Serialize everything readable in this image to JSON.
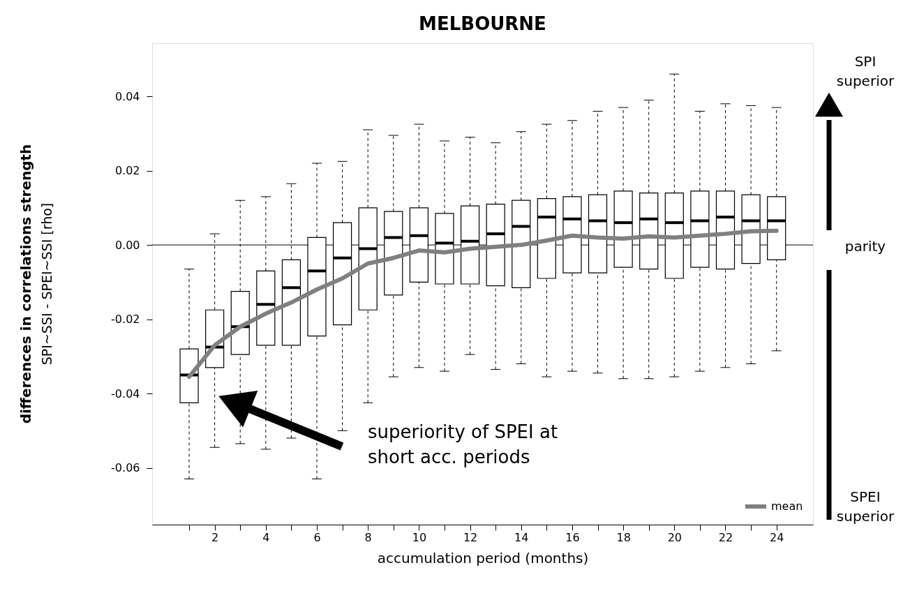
{
  "chart_data": {
    "type": "box",
    "title": "MELBOURNE",
    "xlabel": "accumulation period (months)",
    "ylabel": "differences in correlations strength\nSPI~SSI - SPEI~SSI [rho]",
    "x": [
      1,
      2,
      3,
      4,
      5,
      6,
      7,
      8,
      9,
      10,
      11,
      12,
      13,
      14,
      15,
      16,
      17,
      18,
      19,
      20,
      21,
      22,
      23,
      24
    ],
    "boxes": [
      {
        "low": -0.063,
        "q1": -0.0425,
        "median": -0.035,
        "q3": -0.028,
        "high": -0.0065
      },
      {
        "low": -0.0545,
        "q1": -0.033,
        "median": -0.0275,
        "q3": -0.0175,
        "high": 0.003
      },
      {
        "low": -0.0535,
        "q1": -0.0295,
        "median": -0.022,
        "q3": -0.0125,
        "high": 0.012
      },
      {
        "low": -0.055,
        "q1": -0.027,
        "median": -0.016,
        "q3": -0.007,
        "high": 0.013
      },
      {
        "low": -0.052,
        "q1": -0.027,
        "median": -0.0115,
        "q3": -0.004,
        "high": 0.0165
      },
      {
        "low": -0.063,
        "q1": -0.0245,
        "median": -0.007,
        "q3": 0.002,
        "high": 0.022
      },
      {
        "low": -0.05,
        "q1": -0.0215,
        "median": -0.0035,
        "q3": 0.006,
        "high": 0.0225
      },
      {
        "low": -0.0425,
        "q1": -0.0175,
        "median": -0.001,
        "q3": 0.01,
        "high": 0.031
      },
      {
        "low": -0.0355,
        "q1": -0.0135,
        "median": 0.002,
        "q3": 0.009,
        "high": 0.0295
      },
      {
        "low": -0.033,
        "q1": -0.01,
        "median": 0.0025,
        "q3": 0.01,
        "high": 0.0325
      },
      {
        "low": -0.034,
        "q1": -0.0105,
        "median": 0.0005,
        "q3": 0.0085,
        "high": 0.028
      },
      {
        "low": -0.0295,
        "q1": -0.0105,
        "median": 0.001,
        "q3": 0.0105,
        "high": 0.029
      },
      {
        "low": -0.0335,
        "q1": -0.011,
        "median": 0.003,
        "q3": 0.011,
        "high": 0.0275
      },
      {
        "low": -0.032,
        "q1": -0.0115,
        "median": 0.005,
        "q3": 0.012,
        "high": 0.0305
      },
      {
        "low": -0.0355,
        "q1": -0.009,
        "median": 0.0075,
        "q3": 0.0125,
        "high": 0.0325
      },
      {
        "low": -0.034,
        "q1": -0.0075,
        "median": 0.007,
        "q3": 0.013,
        "high": 0.0335
      },
      {
        "low": -0.0345,
        "q1": -0.0075,
        "median": 0.0065,
        "q3": 0.0135,
        "high": 0.036
      },
      {
        "low": -0.036,
        "q1": -0.006,
        "median": 0.006,
        "q3": 0.0145,
        "high": 0.037
      },
      {
        "low": -0.036,
        "q1": -0.0065,
        "median": 0.007,
        "q3": 0.014,
        "high": 0.039
      },
      {
        "low": -0.0355,
        "q1": -0.009,
        "median": 0.006,
        "q3": 0.014,
        "high": 0.046
      },
      {
        "low": -0.034,
        "q1": -0.006,
        "median": 0.0065,
        "q3": 0.0145,
        "high": 0.036
      },
      {
        "low": -0.033,
        "q1": -0.0065,
        "median": 0.0075,
        "q3": 0.0145,
        "high": 0.038
      },
      {
        "low": -0.032,
        "q1": -0.005,
        "median": 0.0065,
        "q3": 0.0135,
        "high": 0.0375
      },
      {
        "low": -0.0285,
        "q1": -0.004,
        "median": 0.0065,
        "q3": 0.013,
        "high": 0.037
      }
    ],
    "series": [
      {
        "name": "mean",
        "type": "line",
        "color": "#808080",
        "x": [
          1,
          2,
          3,
          4,
          5,
          6,
          7,
          8,
          9,
          10,
          11,
          12,
          13,
          14,
          15,
          16,
          17,
          18,
          19,
          20,
          21,
          22,
          23,
          24
        ],
        "values": [
          -0.0355,
          -0.027,
          -0.022,
          -0.0185,
          -0.0155,
          -0.012,
          -0.009,
          -0.005,
          -0.0035,
          -0.0015,
          -0.002,
          -0.001,
          -0.0005,
          0.0,
          0.0012,
          0.0025,
          0.002,
          0.0017,
          0.0023,
          0.002,
          0.0025,
          0.003,
          0.0037,
          0.0038
        ]
      }
    ],
    "xlim": [
      -0.45,
      25.43
    ],
    "ylim": [
      -0.0753,
      0.0543
    ],
    "xticks": [
      {
        "value": 1,
        "label": null
      },
      2,
      {
        "value": 3,
        "label": null
      },
      4,
      {
        "value": 5,
        "label": null
      },
      6,
      {
        "value": 7,
        "label": null
      },
      8,
      {
        "value": 9,
        "label": null
      },
      10,
      {
        "value": 11,
        "label": null
      },
      12,
      {
        "value": 13,
        "label": null
      },
      14,
      {
        "value": 15,
        "label": null
      },
      16,
      {
        "value": 17,
        "label": null
      },
      18,
      {
        "value": 19,
        "label": null
      },
      20,
      {
        "value": 21,
        "label": null
      },
      22,
      {
        "value": 23,
        "label": null
      },
      24
    ],
    "yticks": [
      -0.06,
      -0.04,
      -0.02,
      {
        "value": 0,
        "label": "0.00"
      },
      0.02,
      0.04
    ],
    "ref_lines": [
      {
        "axis": "y",
        "value": 0,
        "color": "#000000"
      }
    ],
    "annotations": [
      "superiority of SPEI at\nshort acc. periods",
      "SPI\nsuperior",
      "parity",
      "SPEI\nsuperior"
    ],
    "legend": "bottom right",
    "grid": false
  }
}
